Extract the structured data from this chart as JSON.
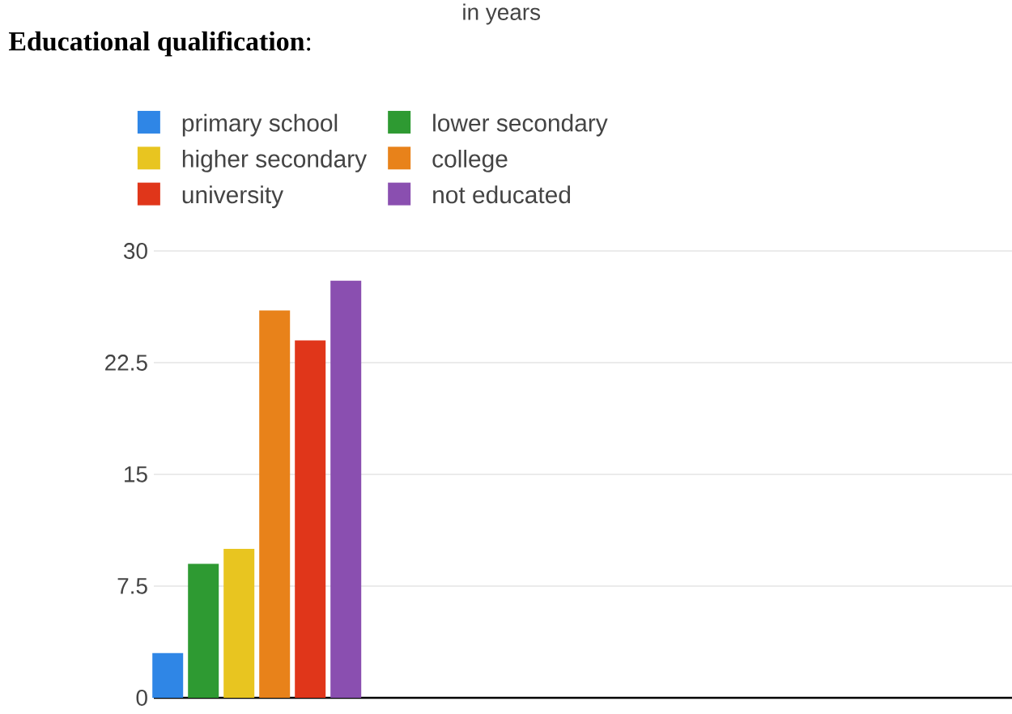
{
  "chart_data": {
    "type": "bar",
    "title": "**Educational qualification**:",
    "annotations": [
      "in years"
    ],
    "categories": [
      null
    ],
    "series": [
      {
        "name": "primary school",
        "color": "#2f86e6",
        "values": [
          3
        ]
      },
      {
        "name": "lower secondary",
        "color": "#2e9a32",
        "values": [
          9
        ]
      },
      {
        "name": "higher secondary",
        "color": "#e8c520",
        "values": [
          10
        ]
      },
      {
        "name": "college",
        "color": "#e8821a",
        "values": [
          26
        ]
      },
      {
        "name": "university",
        "color": "#e0361a",
        "values": [
          24
        ]
      },
      {
        "name": "not educated",
        "color": "#8a4fb0",
        "values": [
          28
        ]
      }
    ],
    "ylim": [
      0,
      30
    ],
    "yticks": [
      0,
      7.5,
      15,
      22.5,
      30
    ],
    "grid": "y",
    "legend": "top"
  }
}
